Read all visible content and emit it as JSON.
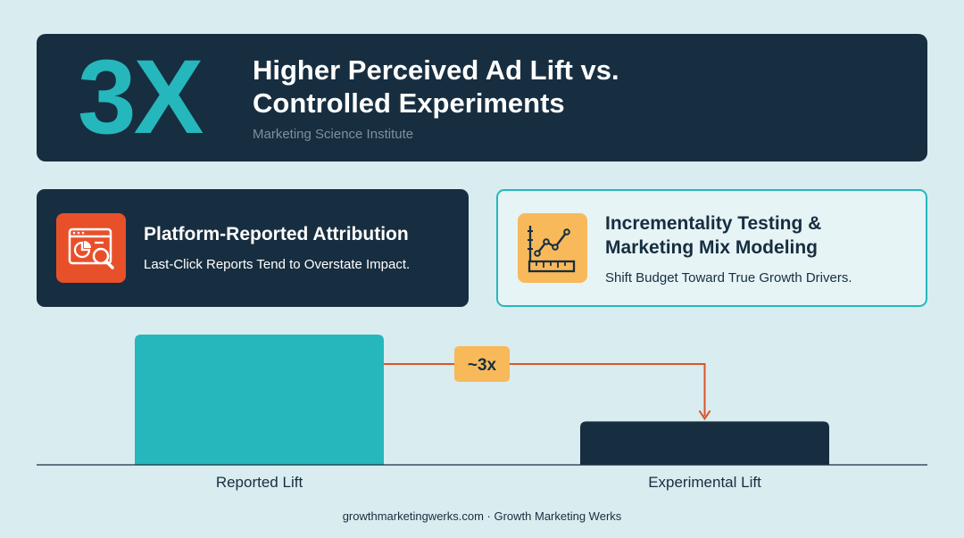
{
  "hero": {
    "big_stat": "3X",
    "title_line1": "Higher Perceived Ad Lift vs.",
    "title_line2": "Controlled Experiments",
    "source": "Marketing Science Institute"
  },
  "cards": {
    "left": {
      "icon": "attribution-report-icon",
      "title": "Platform-Reported Attribution",
      "subtitle": "Last-Click Reports Tend to Overstate Impact."
    },
    "right": {
      "icon": "trend-ruler-icon",
      "title_line1": "Incrementality Testing &",
      "title_line2": "Marketing Mix Modeling",
      "subtitle": "Shift Budget Toward True Growth Drivers."
    }
  },
  "chart_data": {
    "type": "bar",
    "categories": [
      "Reported Lift",
      "Experimental Lift"
    ],
    "values": [
      3,
      1
    ],
    "ylim": [
      0,
      3
    ],
    "grid": false,
    "annotation": "~3x",
    "colors": [
      "#25b7bc",
      "#172e40"
    ]
  },
  "colors": {
    "accent": "#25b7bc",
    "navy": "#172e40",
    "arrow": "#d9542a",
    "badge": "#f8b95a",
    "background": "#d9ecef"
  },
  "footer": "growthmarketingwerks.com · Growth Marketing Werks"
}
